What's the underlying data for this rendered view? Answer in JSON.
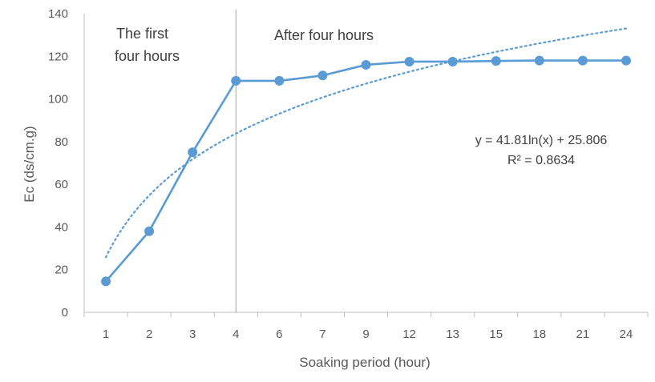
{
  "chart_data": {
    "type": "line",
    "title": "",
    "xlabel": "Soaking period (hour)",
    "ylabel": "Ec (ds/cm.g)",
    "categories": [
      "1",
      "2",
      "3",
      "4",
      "6",
      "7",
      "9",
      "12",
      "13",
      "15",
      "18",
      "21",
      "24"
    ],
    "ylim": [
      0,
      140
    ],
    "yticks": [
      0,
      20,
      40,
      60,
      80,
      100,
      120,
      140
    ],
    "grid": false,
    "series": [
      {
        "values": [
          14.5,
          38,
          75,
          108.5,
          108.5,
          111,
          116,
          117.5,
          117.5,
          117.8,
          118,
          118,
          118
        ],
        "color": "#5B9BD5",
        "marker": "circle"
      }
    ],
    "trendline": {
      "type": "logarithmic",
      "a": 41.81,
      "b": 25.806,
      "color": "#5B9BD5",
      "style": "dotted",
      "equation_text": "y = 41.81ln(x) + 25.806",
      "r2_text": "R² = 0.8634"
    },
    "divider_after_category": "4",
    "annotations": {
      "left_line1": "The first",
      "left_line2": "four hours",
      "right": "After four hours"
    },
    "axis_color": "#bfbfbf",
    "divider_color": "#a6a6a6"
  }
}
